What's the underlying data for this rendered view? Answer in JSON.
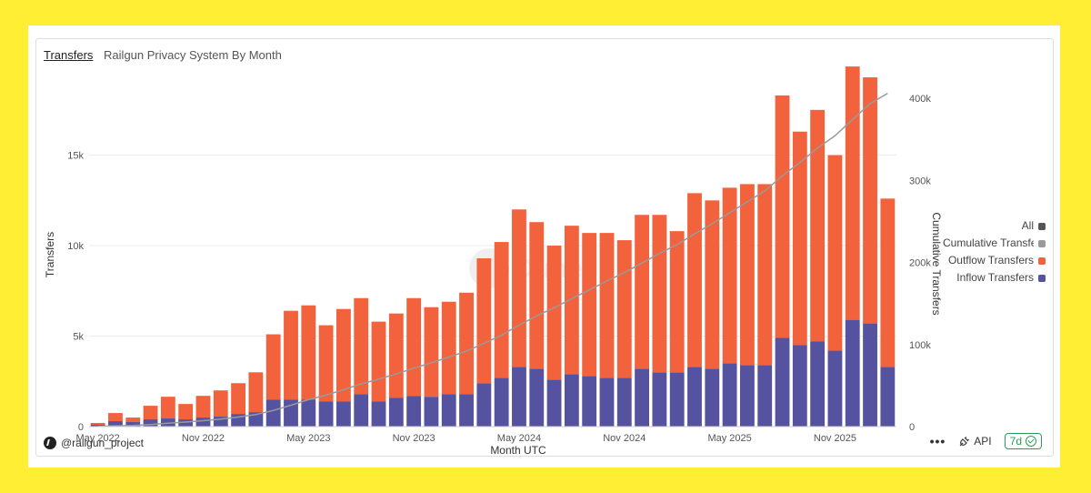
{
  "header": {
    "tab": "Transfers",
    "title": "Railgun Privacy System By Month"
  },
  "footer": {
    "handle": "@railgun_project",
    "more": "•••",
    "api": "API",
    "refresh": "7d"
  },
  "legend": [
    {
      "label": "All",
      "color": "#555555"
    },
    {
      "label": "Cumulative Transfers",
      "color": "#9a9a9a"
    },
    {
      "label": "Outflow Transfers",
      "color": "#F2623D"
    },
    {
      "label": "Inflow Transfers",
      "color": "#5552A0"
    }
  ],
  "watermark": "Dune",
  "chart_data": {
    "type": "bar",
    "stacked": true,
    "xlabel": "Month UTC",
    "ylabel": "Transfers",
    "y2label": "Cumulative Transfers",
    "ylim": [
      0,
      19000
    ],
    "y2lim": [
      0,
      419000
    ],
    "yticks": [
      0,
      5000,
      10000,
      15000
    ],
    "ytick_labels": [
      "0",
      "5k",
      "10k",
      "15k"
    ],
    "y2ticks": [
      0,
      100000,
      200000,
      300000,
      400000
    ],
    "y2tick_labels": [
      "0",
      "100k",
      "200k",
      "300k",
      "400k"
    ],
    "xtick_labels": [
      {
        "index": 0,
        "label": "May 2022"
      },
      {
        "index": 6,
        "label": "Nov 2022"
      },
      {
        "index": 12,
        "label": "May 2023"
      },
      {
        "index": 18,
        "label": "Nov 2023"
      },
      {
        "index": 24,
        "label": "May 2024"
      },
      {
        "index": 30,
        "label": "Nov 2024"
      },
      {
        "index": 36,
        "label": "May 2025"
      },
      {
        "index": 42,
        "label": "Nov 2025"
      }
    ],
    "categories": [
      "2022-04",
      "2022-05",
      "2022-06",
      "2022-07",
      "2022-08",
      "2022-09",
      "2022-10",
      "2022-11",
      "2022-12",
      "2023-01",
      "2023-02",
      "2023-03",
      "2023-04",
      "2023-05",
      "2023-06",
      "2023-07",
      "2023-08",
      "2023-09",
      "2023-10",
      "2023-11",
      "2023-12",
      "2024-01",
      "2024-02",
      "2024-03",
      "2024-04",
      "2024-05",
      "2024-06",
      "2024-07",
      "2024-08",
      "2024-09",
      "2024-10",
      "2024-11",
      "2024-12",
      "2025-01",
      "2025-02",
      "2025-03",
      "2025-04",
      "2025-05",
      "2025-06",
      "2025-07",
      "2025-08",
      "2025-09",
      "2025-10",
      "2025-11",
      "2025-12",
      "2026-01"
    ],
    "series": [
      {
        "name": "Inflow Transfers",
        "color": "#5552A0",
        "values": [
          100,
          300,
          250,
          400,
          450,
          400,
          500,
          550,
          700,
          800,
          1500,
          1500,
          1500,
          1400,
          1400,
          1800,
          1400,
          1600,
          1700,
          1650,
          1800,
          1800,
          2400,
          2700,
          3300,
          3200,
          2600,
          2900,
          2800,
          2700,
          2700,
          3200,
          3000,
          3000,
          3300,
          3200,
          3500,
          3400,
          3400,
          4900,
          4500,
          4700,
          4200,
          5900,
          5700,
          3300
        ]
      },
      {
        "name": "Outflow Transfers",
        "color": "#F2623D",
        "values": [
          100,
          450,
          250,
          750,
          1200,
          850,
          1200,
          1450,
          1700,
          2200,
          3600,
          4900,
          5200,
          4200,
          5100,
          5300,
          4400,
          4650,
          5400,
          4950,
          5100,
          5600,
          6900,
          7500,
          8700,
          8100,
          7400,
          8200,
          7900,
          8000,
          7600,
          8500,
          8700,
          7800,
          9600,
          9300,
          9700,
          10000,
          10000,
          13400,
          11800,
          12800,
          10800,
          14000,
          13600,
          9300
        ]
      },
      {
        "name": "Cumulative Transfers",
        "type": "line",
        "color": "#9a9a9a",
        "values": [
          200,
          950,
          1450,
          2600,
          4250,
          5500,
          7200,
          9200,
          11600,
          14600,
          19700,
          26100,
          32800,
          38400,
          44900,
          52000,
          57800,
          64050,
          71150,
          77750,
          84650,
          92050,
          101350,
          111550,
          123550,
          134850,
          144850,
          155950,
          166650,
          177350,
          187650,
          199350,
          211050,
          221850,
          234750,
          247250,
          260450,
          273850,
          287250,
          305550,
          321850,
          339350,
          354350,
          374250,
          393550,
          406150
        ]
      }
    ]
  }
}
